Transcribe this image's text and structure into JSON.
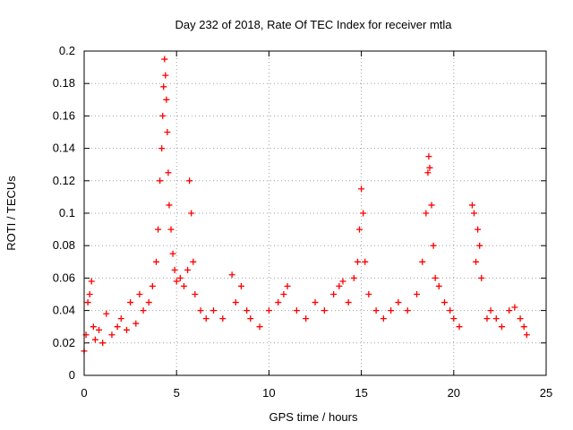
{
  "chart_data": {
    "type": "scatter",
    "title": "Day 232 of 2018, Rate Of TEC Index for receiver mtla",
    "xlabel": "GPS time / hours",
    "ylabel": "ROTI / TECUs",
    "xlim": [
      0,
      25
    ],
    "ylim": [
      0,
      0.2
    ],
    "x_ticks": [
      0,
      5,
      10,
      15,
      20,
      25
    ],
    "x_tick_labels": [
      "0",
      "5",
      "10",
      "15",
      "20",
      "25"
    ],
    "y_ticks": [
      0,
      0.02,
      0.04,
      0.06,
      0.08,
      0.1,
      0.12,
      0.14,
      0.16,
      0.18,
      0.2
    ],
    "y_tick_labels": [
      "0",
      "0.02",
      "0.04",
      "0.06",
      "0.08",
      "0.1",
      "0.12",
      "0.14",
      "0.16",
      "0.18",
      "0.2"
    ],
    "grid": true,
    "marker": "+",
    "color": "#ff0000",
    "series": [
      {
        "points": [
          [
            0.0,
            0.015
          ],
          [
            0.1,
            0.025
          ],
          [
            0.2,
            0.045
          ],
          [
            0.3,
            0.05
          ],
          [
            0.4,
            0.058
          ],
          [
            0.5,
            0.03
          ],
          [
            0.6,
            0.022
          ],
          [
            0.8,
            0.028
          ],
          [
            1.0,
            0.02
          ],
          [
            1.2,
            0.038
          ],
          [
            1.5,
            0.025
          ],
          [
            1.8,
            0.03
          ],
          [
            2.0,
            0.035
          ],
          [
            2.3,
            0.028
          ],
          [
            2.5,
            0.045
          ],
          [
            2.8,
            0.032
          ],
          [
            3.0,
            0.05
          ],
          [
            3.2,
            0.04
          ],
          [
            3.5,
            0.045
          ],
          [
            3.7,
            0.055
          ],
          [
            3.9,
            0.07
          ],
          [
            4.0,
            0.09
          ],
          [
            4.1,
            0.12
          ],
          [
            4.2,
            0.14
          ],
          [
            4.25,
            0.16
          ],
          [
            4.3,
            0.178
          ],
          [
            4.35,
            0.195
          ],
          [
            4.4,
            0.185
          ],
          [
            4.45,
            0.17
          ],
          [
            4.5,
            0.15
          ],
          [
            4.55,
            0.125
          ],
          [
            4.6,
            0.105
          ],
          [
            4.7,
            0.09
          ],
          [
            4.8,
            0.075
          ],
          [
            4.9,
            0.065
          ],
          [
            5.0,
            0.058
          ],
          [
            5.2,
            0.06
          ],
          [
            5.4,
            0.055
          ],
          [
            5.6,
            0.065
          ],
          [
            5.7,
            0.12
          ],
          [
            5.8,
            0.1
          ],
          [
            5.9,
            0.07
          ],
          [
            6.0,
            0.05
          ],
          [
            6.3,
            0.04
          ],
          [
            6.6,
            0.035
          ],
          [
            7.0,
            0.04
          ],
          [
            7.5,
            0.035
          ],
          [
            8.0,
            0.062
          ],
          [
            8.2,
            0.045
          ],
          [
            8.5,
            0.055
          ],
          [
            8.8,
            0.04
          ],
          [
            9.0,
            0.035
          ],
          [
            9.5,
            0.03
          ],
          [
            10.0,
            0.04
          ],
          [
            10.5,
            0.045
          ],
          [
            10.8,
            0.05
          ],
          [
            11.0,
            0.055
          ],
          [
            11.5,
            0.04
          ],
          [
            12.0,
            0.035
          ],
          [
            12.5,
            0.045
          ],
          [
            13.0,
            0.04
          ],
          [
            13.5,
            0.05
          ],
          [
            13.8,
            0.055
          ],
          [
            14.0,
            0.058
          ],
          [
            14.3,
            0.045
          ],
          [
            14.6,
            0.06
          ],
          [
            14.8,
            0.07
          ],
          [
            14.9,
            0.09
          ],
          [
            15.0,
            0.115
          ],
          [
            15.1,
            0.1
          ],
          [
            15.2,
            0.07
          ],
          [
            15.4,
            0.05
          ],
          [
            15.8,
            0.04
          ],
          [
            16.2,
            0.035
          ],
          [
            16.6,
            0.04
          ],
          [
            17.0,
            0.045
          ],
          [
            17.5,
            0.04
          ],
          [
            18.0,
            0.05
          ],
          [
            18.3,
            0.07
          ],
          [
            18.5,
            0.1
          ],
          [
            18.6,
            0.125
          ],
          [
            18.65,
            0.135
          ],
          [
            18.7,
            0.128
          ],
          [
            18.8,
            0.105
          ],
          [
            18.9,
            0.08
          ],
          [
            19.0,
            0.06
          ],
          [
            19.2,
            0.055
          ],
          [
            19.5,
            0.045
          ],
          [
            19.8,
            0.04
          ],
          [
            20.0,
            0.035
          ],
          [
            20.3,
            0.03
          ],
          [
            21.0,
            0.105
          ],
          [
            21.1,
            0.1
          ],
          [
            21.2,
            0.07
          ],
          [
            21.3,
            0.09
          ],
          [
            21.4,
            0.08
          ],
          [
            21.5,
            0.06
          ],
          [
            21.8,
            0.035
          ],
          [
            22.0,
            0.04
          ],
          [
            22.3,
            0.035
          ],
          [
            22.6,
            0.03
          ],
          [
            23.0,
            0.04
          ],
          [
            23.3,
            0.042
          ],
          [
            23.6,
            0.035
          ],
          [
            23.8,
            0.03
          ],
          [
            23.95,
            0.025
          ]
        ]
      }
    ]
  }
}
